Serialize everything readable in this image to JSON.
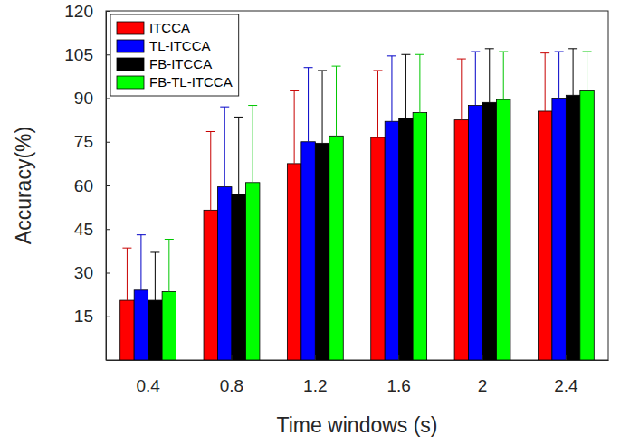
{
  "chart_data": {
    "type": "bar",
    "x_label": "Time windows (s)",
    "y_label": "Accuracy(%)",
    "categories": [
      "0.4",
      "0.8",
      "1.2",
      "1.6",
      "2",
      "2.4"
    ],
    "series": [
      {
        "name": "ITCCA",
        "color": "#ff0000",
        "values": [
          20.5,
          51.5,
          67.5,
          76.5,
          82.5,
          85.5
        ],
        "errors": [
          18,
          27,
          25,
          23,
          21,
          20
        ]
      },
      {
        "name": "TL-ITCCA",
        "color": "#0000ff",
        "values": [
          24,
          59.5,
          75,
          82,
          87.5,
          90
        ],
        "errors": [
          19,
          27.5,
          25.5,
          22.5,
          18.5,
          16
        ]
      },
      {
        "name": "FB-ITCCA",
        "color": "#000000",
        "values": [
          20.5,
          57,
          74.5,
          83,
          88.5,
          91
        ],
        "errors": [
          16.5,
          26.5,
          25,
          22,
          18.5,
          16
        ]
      },
      {
        "name": "FB-TL-ITCCA",
        "color": "#00ff00",
        "values": [
          23.5,
          61,
          77,
          85,
          89.5,
          92.5
        ],
        "errors": [
          18,
          26.5,
          24,
          20,
          16.5,
          13.5
        ]
      }
    ],
    "ylim": [
      0,
      120
    ],
    "yticks": [
      15,
      30,
      45,
      60,
      75,
      90,
      105,
      120
    ],
    "grid": false,
    "legend": "upper left"
  }
}
